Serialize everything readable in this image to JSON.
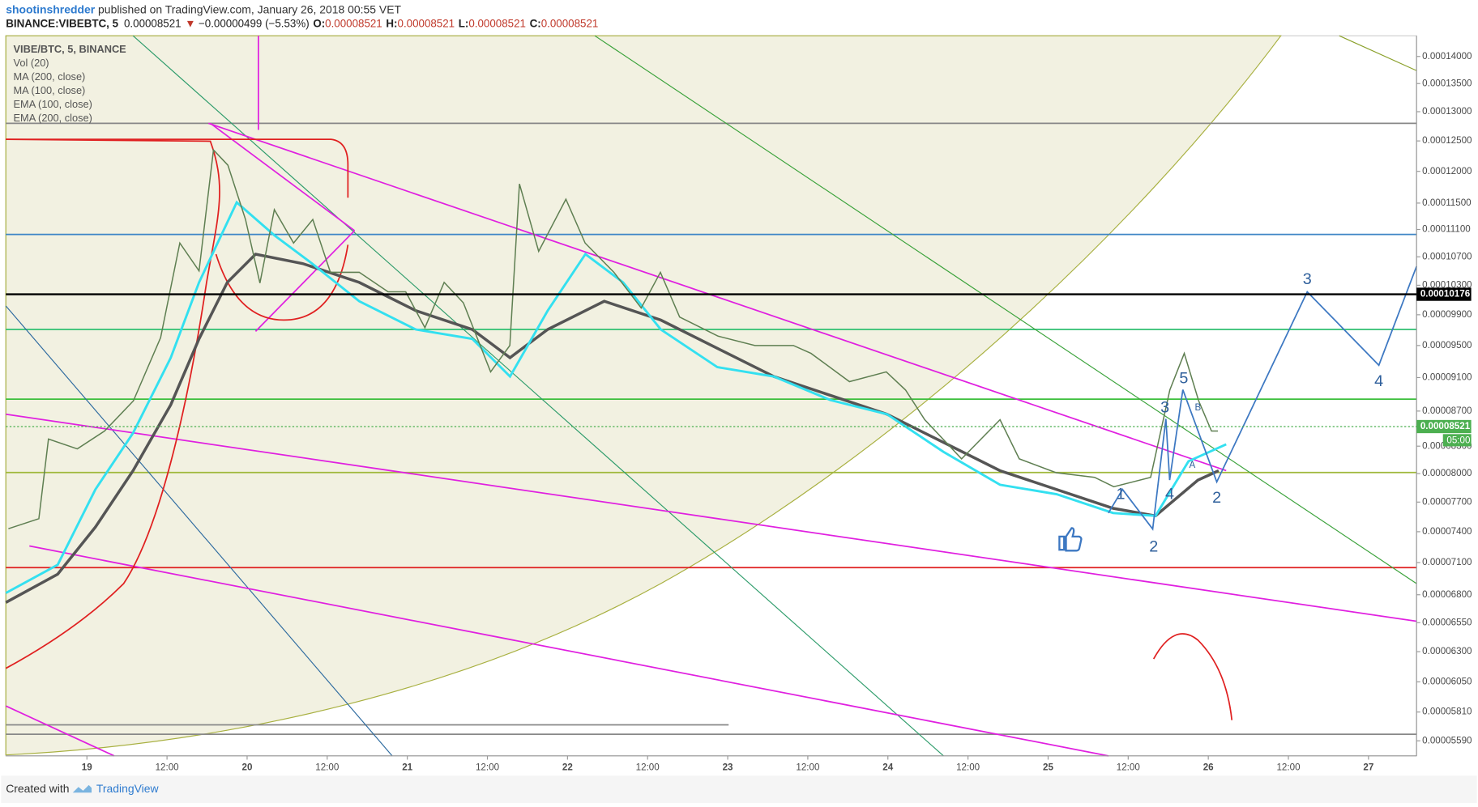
{
  "header": {
    "author": "shootinshredder",
    "published": " published on TradingView.com, January 26, 2018 00:55 VET",
    "symbol": "BINANCE:VIBEBTC, 5",
    "last": "0.00008521",
    "arrow": "▼",
    "change": "−0.00000499 (−5.53%)",
    "o_label": "O:",
    "o": "0.00008521",
    "h_label": "H:",
    "h": "0.00008521",
    "l_label": "L:",
    "l": "0.00008521",
    "c_label": "C:",
    "c": "0.00008521"
  },
  "footer": {
    "created": "Created with",
    "brand": "TradingView"
  },
  "chart_data": {
    "type": "line",
    "log_scale": true,
    "grid": false,
    "legend": [
      "VIBE/BTC, 5, BINANCE",
      "Vol (20)",
      "MA (200, close)",
      "MA (100, close)",
      "EMA (100, close)",
      "EMA (200, close)"
    ],
    "x": [
      18.51,
      18.7,
      18.76,
      18.94,
      19.11,
      19.29,
      19.46,
      19.58,
      19.7,
      19.79,
      19.88,
      19.99,
      20.08,
      20.17,
      20.29,
      20.41,
      20.52,
      20.7,
      20.88,
      20.99,
      21.11,
      21.23,
      21.35,
      21.52,
      21.64,
      21.7,
      21.82,
      21.99,
      22.11,
      22.29,
      22.46,
      22.58,
      22.7,
      22.94,
      23.17,
      23.41,
      23.52,
      23.76,
      23.99,
      24.11,
      24.23,
      24.46,
      24.7,
      24.82,
      25.05,
      25.29,
      25.41,
      25.64,
      25.76,
      25.85,
      25.94,
      26.02,
      26.06
    ],
    "series": [
      {
        "name": "VIBE/BTC, 5, BINANCE",
        "color": "#5f7f52",
        "values": [
          7.43e-05,
          7.53e-05,
          8.38e-05,
          8.27e-05,
          8.47e-05,
          8.82e-05,
          9.6e-05,
          0.000109,
          0.000105,
          0.0001235,
          0.000121,
          0.0001125,
          0.0001033,
          0.000114,
          0.000109,
          0.0001125,
          0.0001048,
          0.0001048,
          0.0001021,
          0.0001021,
          9.73e-05,
          0.0001034,
          0.0001006,
          9.17e-05,
          9.5e-05,
          0.000118,
          0.0001078,
          0.0001156,
          0.000109,
          0.0001048,
          9.99e-05,
          0.0001048,
          9.87e-05,
          9.62e-05,
          9.5e-05,
          9.5e-05,
          9.4e-05,
          9.05e-05,
          9.17e-05,
          8.95e-05,
          8.6e-05,
          8.16e-05,
          8.6e-05,
          8.16e-05,
          8.01e-05,
          7.96e-05,
          7.86e-05,
          7.96e-05,
          8.95e-05,
          9.4e-05,
          8.82e-05,
          8.47e-05,
          8.47e-05
        ]
      }
    ],
    "xlim": [
      18.494,
      27.3
    ],
    "xticks": [
      {
        "value": 19,
        "label": "19"
      },
      {
        "value": 19.5,
        "label": "12:00"
      },
      {
        "value": 20,
        "label": "20"
      },
      {
        "value": 20.5,
        "label": "12:00"
      },
      {
        "value": 21,
        "label": "21"
      },
      {
        "value": 21.5,
        "label": "12:00"
      },
      {
        "value": 22,
        "label": "22"
      },
      {
        "value": 22.5,
        "label": "12:00"
      },
      {
        "value": 23,
        "label": "23"
      },
      {
        "value": 23.5,
        "label": "12:00"
      },
      {
        "value": 24,
        "label": "24"
      },
      {
        "value": 24.5,
        "label": "12:00"
      },
      {
        "value": 25,
        "label": "25"
      },
      {
        "value": 25.5,
        "label": "12:00"
      },
      {
        "value": 26,
        "label": "26"
      },
      {
        "value": 26.5,
        "label": "12:00"
      },
      {
        "value": 27,
        "label": "27"
      }
    ],
    "ylim": [
      5.478e-05,
      0.00014394
    ],
    "yticks": [
      {
        "value": 0.00014,
        "label": "0.00014000"
      },
      {
        "value": 0.000135,
        "label": "0.00013500"
      },
      {
        "value": 0.00013,
        "label": "0.00013000"
      },
      {
        "value": 0.000125,
        "label": "0.00012500"
      },
      {
        "value": 0.00012,
        "label": "0.00012000"
      },
      {
        "value": 0.000115,
        "label": "0.00011500"
      },
      {
        "value": 0.000111,
        "label": "0.00011100"
      },
      {
        "value": 0.000107,
        "label": "0.00010700"
      },
      {
        "value": 0.000103,
        "label": "0.00010300"
      },
      {
        "value": 9.9e-05,
        "label": "0.00009900"
      },
      {
        "value": 9.5e-05,
        "label": "0.00009500"
      },
      {
        "value": 9.1e-05,
        "label": "0.00009100"
      },
      {
        "value": 8.7e-05,
        "label": "0.00008700"
      },
      {
        "value": 8.3e-05,
        "label": "0.00008300"
      },
      {
        "value": 8e-05,
        "label": "0.00008000"
      },
      {
        "value": 7.7e-05,
        "label": "0.00007700"
      },
      {
        "value": 7.4e-05,
        "label": "0.00007400"
      },
      {
        "value": 7.1e-05,
        "label": "0.00007100"
      },
      {
        "value": 6.8e-05,
        "label": "0.00006800"
      },
      {
        "value": 6.55e-05,
        "label": "0.00006550"
      },
      {
        "value": 6.3e-05,
        "label": "0.00006300"
      },
      {
        "value": 6.05e-05,
        "label": "0.00006050"
      },
      {
        "value": 5.81e-05,
        "label": "0.00005810"
      },
      {
        "value": 5.59e-05,
        "label": "0.00005590"
      }
    ],
    "price_labels": [
      {
        "value": 0.00010176,
        "label": "0.00010176",
        "color": "#000000"
      },
      {
        "value": 8.521e-05,
        "label": "0.00008521",
        "color": "#4caf50"
      }
    ],
    "countdown": "05:00",
    "annotations": [
      "1",
      "2",
      "3",
      "4",
      "5",
      "A",
      "B",
      "2",
      "3",
      "4"
    ]
  }
}
